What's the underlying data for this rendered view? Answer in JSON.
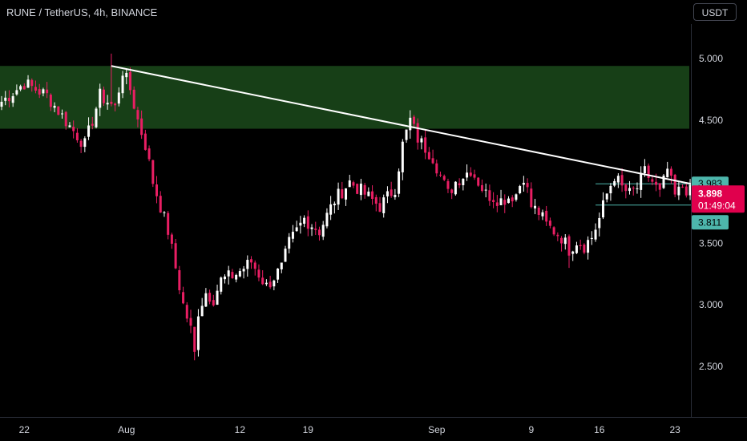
{
  "header": {
    "title": "RUNE / TetherUS, 4h, BINANCE",
    "currency": "USDT"
  },
  "colors": {
    "background": "#000000",
    "up": "#ffffff",
    "down": "#e91e63",
    "zone": "#1b4a1b",
    "trendline": "#ffffff",
    "level": "#4db6ac",
    "price": "#e0004d",
    "axis_text": "#d1d4dc"
  },
  "chart_data": {
    "type": "candlestick",
    "ylim": [
      2.35,
      5.4
    ],
    "y_ticks": [
      "5.000",
      "4.500",
      "3.500",
      "3.000",
      "2.500"
    ],
    "x_ticks": [
      "22",
      "Aug",
      "12",
      "19",
      "Sep",
      "9",
      "16",
      "23"
    ],
    "close_path": [
      [
        0,
        4.65
      ],
      [
        6,
        4.8
      ],
      [
        12,
        4.7
      ],
      [
        18,
        4.45
      ],
      [
        22,
        4.3
      ],
      [
        26,
        4.7
      ],
      [
        30,
        4.6
      ],
      [
        32,
        4.9
      ],
      [
        34,
        4.75
      ],
      [
        36,
        4.5
      ],
      [
        38,
        4.3
      ],
      [
        40,
        4.0
      ],
      [
        42,
        3.8
      ],
      [
        44,
        3.6
      ],
      [
        46,
        3.3
      ],
      [
        48,
        3.0
      ],
      [
        50,
        2.8
      ],
      [
        51,
        2.6
      ],
      [
        52,
        2.95
      ],
      [
        54,
        3.1
      ],
      [
        56,
        3.05
      ],
      [
        58,
        3.2
      ],
      [
        62,
        3.25
      ],
      [
        66,
        3.35
      ],
      [
        70,
        3.15
      ],
      [
        74,
        3.3
      ],
      [
        76,
        3.5
      ],
      [
        80,
        3.7
      ],
      [
        84,
        3.6
      ],
      [
        88,
        3.85
      ],
      [
        92,
        4.0
      ],
      [
        96,
        3.9
      ],
      [
        100,
        3.8
      ],
      [
        104,
        3.95
      ],
      [
        106,
        4.3
      ],
      [
        108,
        4.5
      ],
      [
        110,
        4.35
      ],
      [
        114,
        4.2
      ],
      [
        118,
        3.9
      ],
      [
        120,
        4.0
      ],
      [
        124,
        4.1
      ],
      [
        128,
        3.9
      ],
      [
        132,
        3.85
      ],
      [
        136,
        3.9
      ],
      [
        138,
        4.05
      ],
      [
        140,
        3.8
      ],
      [
        142,
        3.75
      ],
      [
        144,
        3.65
      ],
      [
        146,
        3.6
      ],
      [
        148,
        3.55
      ],
      [
        150,
        3.45
      ],
      [
        152,
        3.52
      ],
      [
        154,
        3.48
      ],
      [
        156,
        3.55
      ],
      [
        158,
        3.7
      ],
      [
        160,
        3.9
      ],
      [
        162,
        4.05
      ],
      [
        164,
        3.95
      ],
      [
        166,
        3.9
      ],
      [
        168,
        3.95
      ],
      [
        170,
        4.08
      ],
      [
        172,
        4.0
      ],
      [
        174,
        3.9
      ],
      [
        176,
        4.1
      ],
      [
        178,
        3.88
      ],
      [
        180,
        3.96
      ],
      [
        183,
        3.898
      ]
    ],
    "wick_extremes": [
      {
        "index": 29,
        "value": 5.04
      },
      {
        "index": 108,
        "value": 4.58
      },
      {
        "index": 51,
        "value": 2.55
      },
      {
        "index": 150,
        "value": 3.3
      }
    ],
    "resistance_zone": {
      "low": 4.43,
      "high": 4.94
    },
    "trendline": {
      "start": [
        29,
        4.94
      ],
      "end": [
        187,
        3.983
      ]
    },
    "upper_level": "3.983",
    "current_price": "3.898",
    "countdown": "01:49:04",
    "lower_level": "3.811"
  }
}
